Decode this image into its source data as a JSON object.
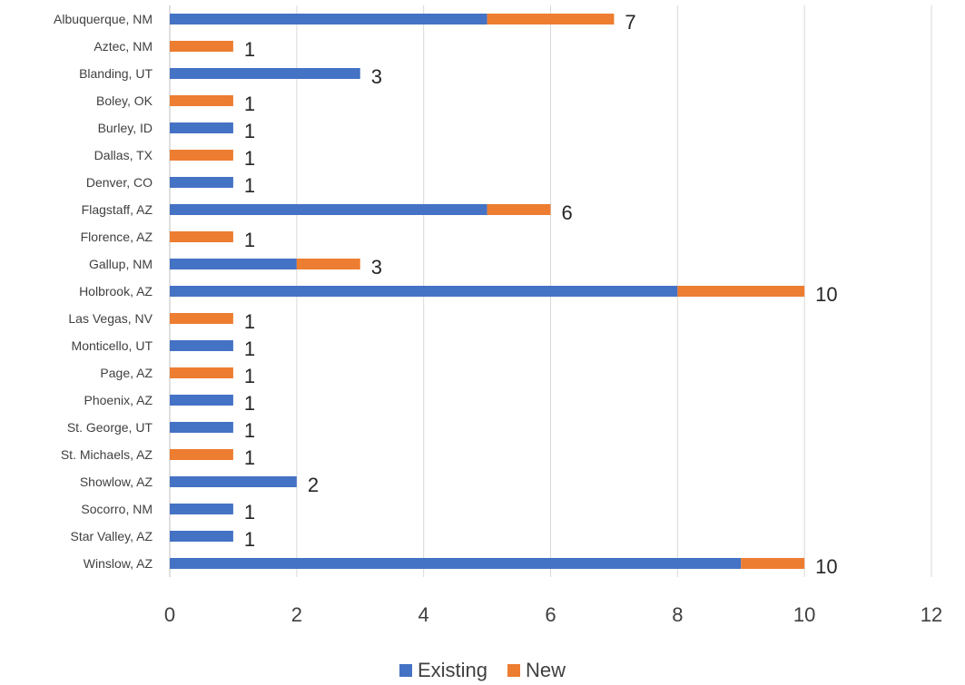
{
  "chart_data": {
    "type": "bar",
    "orientation": "horizontal",
    "stacked": true,
    "categories": [
      "Albuquerque, NM",
      "Aztec, NM",
      "Blanding, UT",
      "Boley, OK",
      "Burley, ID",
      "Dallas, TX",
      "Denver, CO",
      "Flagstaff, AZ",
      "Florence, AZ",
      "Gallup, NM",
      "Holbrook, AZ",
      "Las Vegas, NV",
      "Monticello, UT",
      "Page, AZ",
      "Phoenix, AZ",
      "St. George, UT",
      "St. Michaels, AZ",
      "Showlow, AZ",
      "Socorro, NM",
      "Star Valley, AZ",
      "Winslow, AZ"
    ],
    "series": [
      {
        "name": "Existing",
        "color": "#4472C4",
        "values": [
          5,
          0,
          3,
          0,
          1,
          0,
          1,
          5,
          0,
          2,
          8,
          0,
          1,
          0,
          1,
          1,
          0,
          2,
          1,
          1,
          9
        ]
      },
      {
        "name": "New",
        "color": "#ED7D31",
        "values": [
          2,
          1,
          0,
          1,
          0,
          1,
          0,
          1,
          1,
          1,
          2,
          1,
          0,
          1,
          0,
          0,
          1,
          0,
          0,
          0,
          1
        ]
      }
    ],
    "data_labels": [
      "7",
      "1",
      "3",
      "1",
      "1",
      "1",
      "1",
      "6",
      "1",
      "3",
      "10",
      "1",
      "1",
      "1",
      "1",
      "1",
      "1",
      "2",
      "1",
      "1",
      "10"
    ],
    "xlim": [
      0,
      12
    ],
    "x_ticks": [
      "0",
      "2",
      "4",
      "6",
      "8",
      "10",
      "12"
    ],
    "grid": "vertical",
    "legend_position": "bottom",
    "title": "",
    "xlabel": "",
    "ylabel": ""
  }
}
